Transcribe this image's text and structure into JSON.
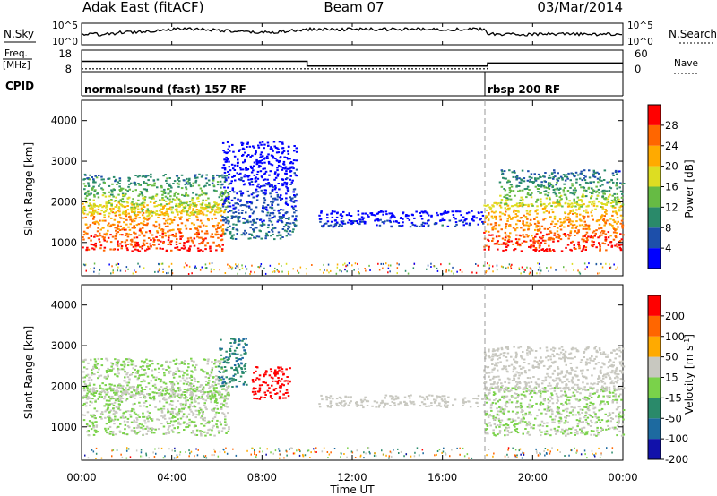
{
  "header": {
    "radar_title": "Adak East (fitACF)",
    "beam": "Beam 07",
    "date": "03/Mar/2014"
  },
  "sky_panel": {
    "left_label": "N.Sky",
    "right_label": "N.Search",
    "ticks_left": [
      "10^5",
      "10^0"
    ],
    "ticks_right": [
      "10^5",
      "10^0"
    ]
  },
  "freq_panel": {
    "left_label_line1": "Freq.",
    "left_label_line2": "[MHz]",
    "right_label": "Nave",
    "ticks_left": [
      "18",
      "8"
    ],
    "ticks_right": [
      "60",
      "0"
    ],
    "freq_mhz": [
      [
        0,
        12.8
      ],
      [
        10,
        10.6
      ],
      [
        18,
        12.0
      ],
      [
        24,
        12.0
      ]
    ],
    "nave": [
      [
        0,
        8
      ],
      [
        18,
        23
      ],
      [
        24,
        23
      ]
    ]
  },
  "cpid": {
    "label": "CPID",
    "segments": [
      {
        "start_hour": 0,
        "end_hour": 18,
        "text": "normalsound (fast) 157 RF"
      },
      {
        "start_hour": 18,
        "end_hour": 24,
        "text": "rbsp 200 RF"
      }
    ]
  },
  "x_axis": {
    "label": "Time UT",
    "range_hours": [
      0,
      24
    ],
    "tick_labels": [
      "00:00",
      "04:00",
      "08:00",
      "12:00",
      "16:00",
      "20:00",
      "00:00"
    ],
    "tick_hours": [
      0,
      4,
      8,
      12,
      16,
      20,
      24
    ]
  },
  "chart_data": [
    {
      "type": "heatmap",
      "parameter": "power",
      "ylabel": "Slant Range [km]",
      "ylim": [
        180,
        4500
      ],
      "y_ticks": [
        1000,
        2000,
        3000,
        4000
      ],
      "colorbar_label": "Power [dB]",
      "colorbar_ticks": [
        4,
        8,
        12,
        16,
        20,
        24,
        28
      ],
      "colorbar_range": [
        0,
        30
      ],
      "colorbar_colors": [
        "#0000ff",
        "#1d4faa",
        "#2a8a6a",
        "#66bb44",
        "#dddd22",
        "#ffaa00",
        "#ff6600",
        "#ff0000"
      ],
      "features": [
        {
          "t0": 0,
          "t1": 6.3,
          "r_lo": 800,
          "r_hi": 2000,
          "value": 28
        },
        {
          "t0": 0,
          "t1": 6.5,
          "r_lo": 1700,
          "r_hi": 2700,
          "value": 18
        },
        {
          "t0": 6.2,
          "t1": 9.5,
          "r_lo": 1100,
          "r_hi": 3500,
          "value": 8
        },
        {
          "t0": 10.5,
          "t1": 17.8,
          "r_lo": 1400,
          "r_hi": 1800,
          "value": 6
        },
        {
          "t0": 17.8,
          "t1": 24,
          "r_lo": 800,
          "r_hi": 2000,
          "value": 28
        },
        {
          "t0": 18.5,
          "t1": 24,
          "r_lo": 1900,
          "r_hi": 2800,
          "value": 16
        }
      ]
    },
    {
      "type": "heatmap",
      "parameter": "velocity",
      "ylabel": "Slant Range [km]",
      "ylim": [
        180,
        4500
      ],
      "y_ticks": [
        1000,
        2000,
        3000,
        4000
      ],
      "colorbar_label": "Velocity [m s^-1]",
      "colorbar_ticks": [
        "200",
        "100",
        "50",
        "15",
        "-15",
        "-50",
        "-100",
        "-200"
      ],
      "colorbar_range": [
        -250,
        250
      ],
      "colorbar_colors": [
        "#1111aa",
        "#1d6aa0",
        "#2a8a6a",
        "#7ad24a",
        "#c8c8c0",
        "#ffaa00",
        "#ff6600",
        "#ff0000"
      ],
      "features": [
        {
          "t0": 0,
          "t1": 6.5,
          "r_lo": 800,
          "r_hi": 2000,
          "value": 0
        },
        {
          "t0": 0,
          "t1": 6.5,
          "r_lo": 1700,
          "r_hi": 2700,
          "value": 0
        },
        {
          "t0": 6.0,
          "t1": 7.3,
          "r_lo": 2000,
          "r_hi": 3200,
          "value": -120
        },
        {
          "t0": 7.5,
          "t1": 9.2,
          "r_lo": 1700,
          "r_hi": 2500,
          "value": 220
        },
        {
          "t0": 10.5,
          "t1": 17.8,
          "r_lo": 1500,
          "r_hi": 1800,
          "value": 30
        },
        {
          "t0": 17.8,
          "t1": 24,
          "r_lo": 800,
          "r_hi": 2000,
          "value": 0
        },
        {
          "t0": 17.8,
          "t1": 24,
          "r_lo": 1900,
          "r_hi": 3000,
          "value": 35
        }
      ]
    }
  ]
}
